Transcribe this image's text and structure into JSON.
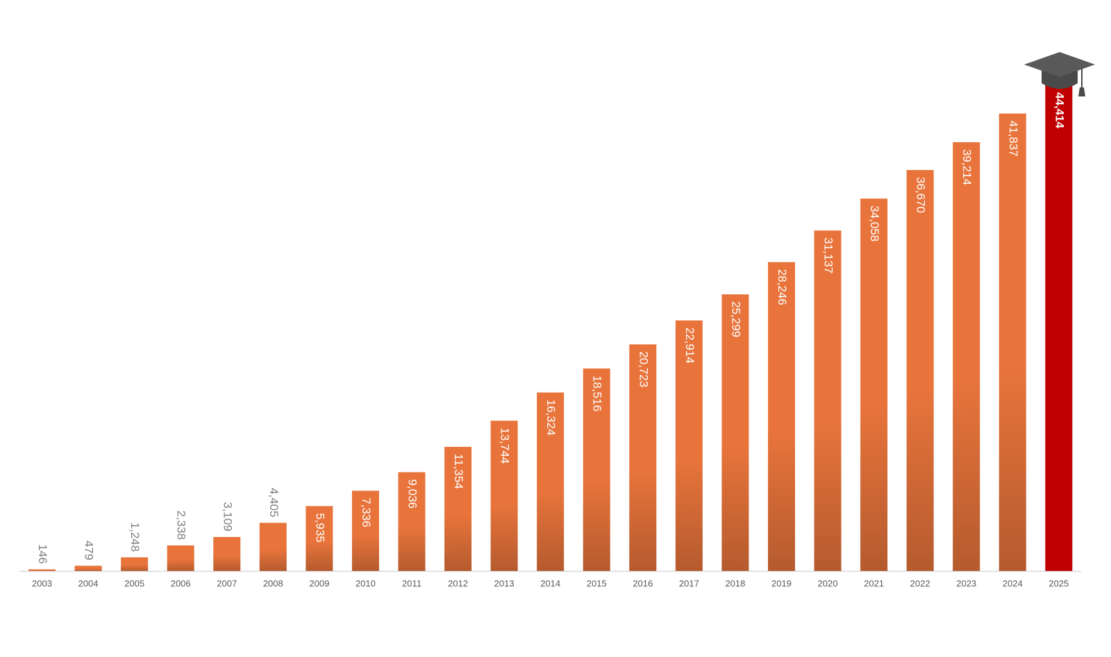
{
  "chart_data": {
    "type": "bar",
    "categories": [
      "2003",
      "2004",
      "2005",
      "2006",
      "2007",
      "2008",
      "2009",
      "2010",
      "2011",
      "2012",
      "2013",
      "2014",
      "2015",
      "2016",
      "2017",
      "2018",
      "2019",
      "2020",
      "2021",
      "2022",
      "2023",
      "2024",
      "2025"
    ],
    "values": [
      146,
      479,
      1248,
      2338,
      3109,
      4405,
      5935,
      7336,
      9036,
      11354,
      13744,
      16324,
      18516,
      20723,
      22914,
      25299,
      28246,
      31137,
      34058,
      36670,
      39214,
      41837,
      44414
    ],
    "value_labels": [
      "146",
      "479",
      "1,248",
      "2,338",
      "3,109",
      "4,405",
      "5,935",
      "7,336",
      "9,036",
      "11,354",
      "13,744",
      "16,324",
      "18,516",
      "20,723",
      "22,914",
      "25,299",
      "28,246",
      "31,137",
      "34,058",
      "36,670",
      "39,214",
      "41,837",
      "44,414"
    ],
    "colors": [
      "#e8743b",
      "#e8743b",
      "#e8743b",
      "#e8743b",
      "#e8743b",
      "#e8743b",
      "#e8743b",
      "#e8743b",
      "#e8743b",
      "#e8743b",
      "#e8743b",
      "#e8743b",
      "#e8743b",
      "#e8743b",
      "#e8743b",
      "#e8743b",
      "#e8743b",
      "#e8743b",
      "#e8743b",
      "#e8743b",
      "#e8743b",
      "#e8743b",
      "#c00000"
    ]
  }
}
